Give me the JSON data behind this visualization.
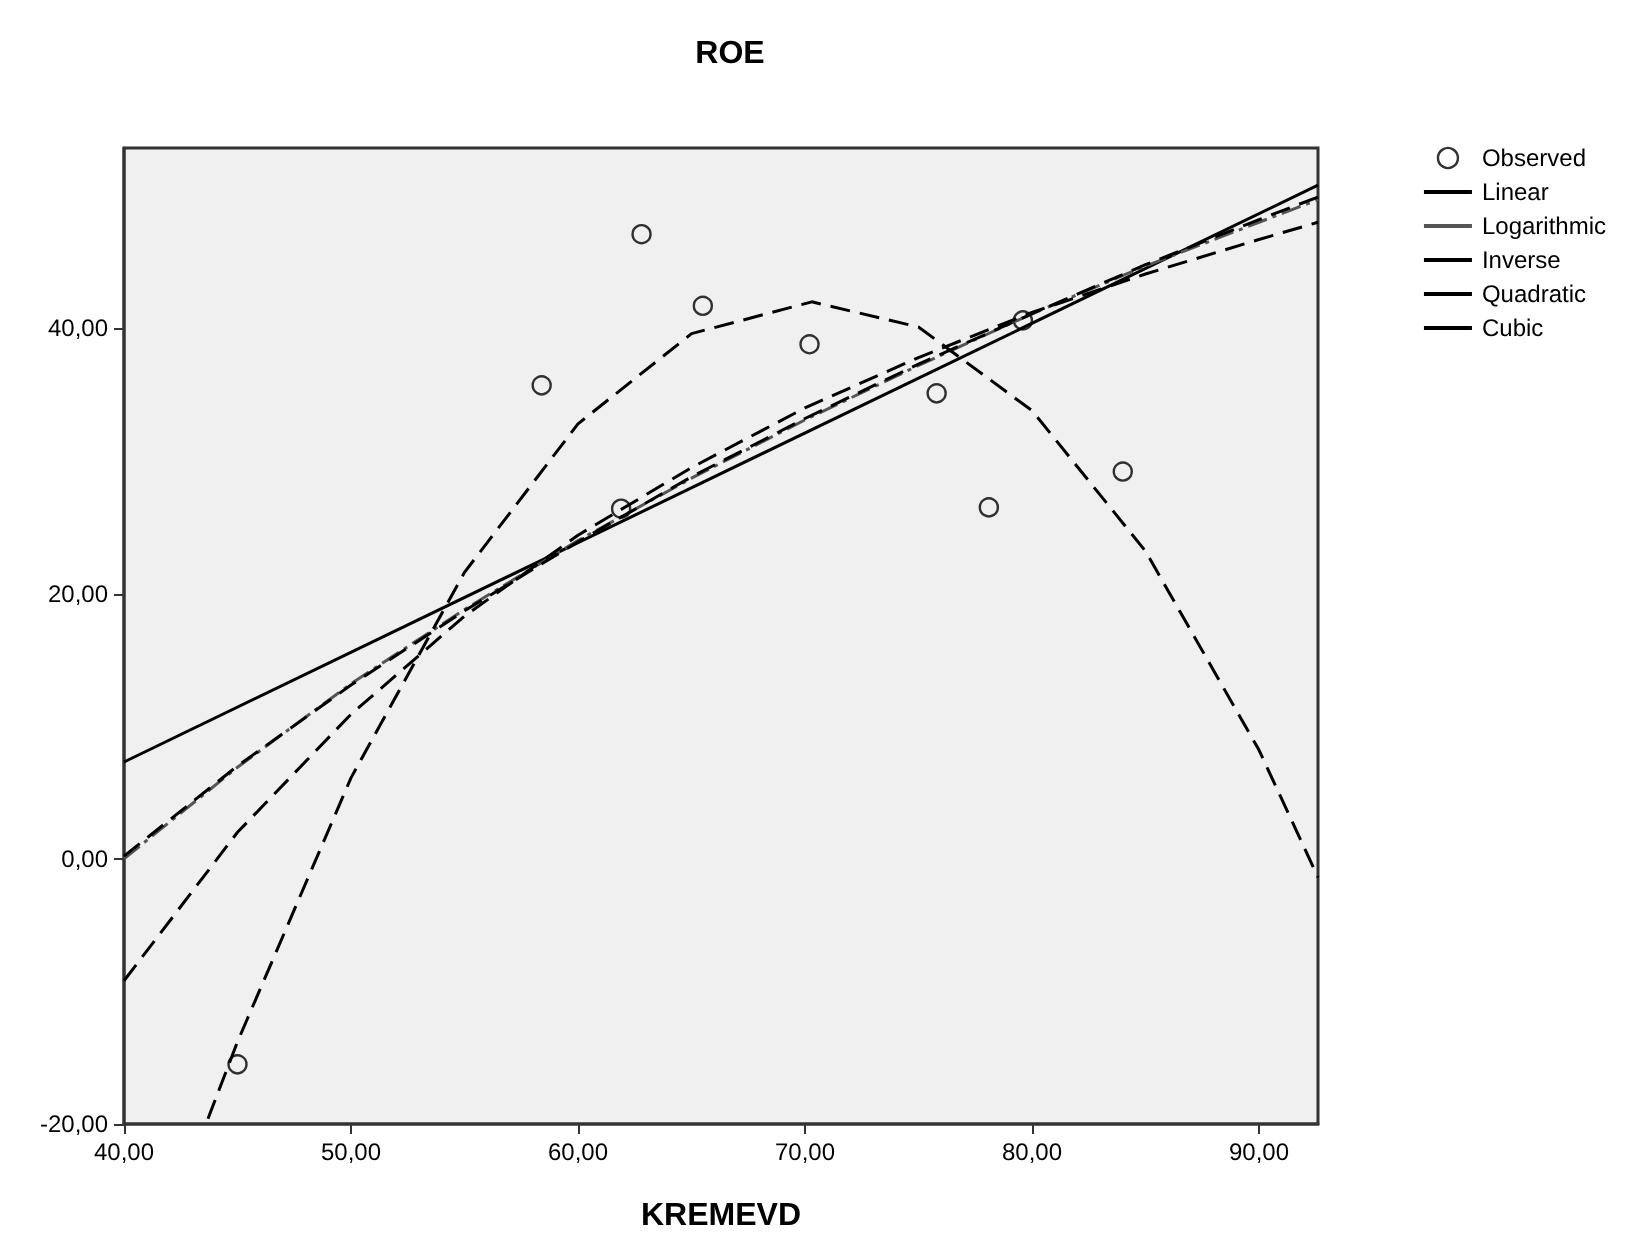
{
  "chart_data": {
    "type": "scatter",
    "title": "ROE",
    "xlabel": "KREMEVD",
    "xlim": [
      40,
      92.6
    ],
    "ylim": [
      -20,
      53.6
    ],
    "xticks": [
      {
        "value": 40,
        "label": "40,00"
      },
      {
        "value": 50,
        "label": "50,00"
      },
      {
        "value": 60,
        "label": "60,00"
      },
      {
        "value": 70,
        "label": "70,00"
      },
      {
        "value": 80,
        "label": "80,00"
      },
      {
        "value": 90,
        "label": "90,00"
      }
    ],
    "yticks": [
      {
        "value": -20,
        "label": "-20,00"
      },
      {
        "value": 0,
        "label": "0,00"
      },
      {
        "value": 20,
        "label": "20,00"
      },
      {
        "value": 40,
        "label": "40,00"
      }
    ],
    "grid": false,
    "legend": "top right",
    "series": [
      {
        "name": "Observed",
        "marker": "circle",
        "color": "#000000",
        "x": [
          45.0,
          58.4,
          61.9,
          62.8,
          65.5,
          70.2,
          75.8,
          78.1,
          79.6,
          84.0
        ],
        "values": [
          -15.5,
          35.7,
          26.4,
          47.1,
          41.7,
          38.8,
          35.1,
          26.5,
          40.6,
          29.2
        ]
      },
      {
        "name": "Linear",
        "type": "line",
        "line_style": "solid",
        "color": "#000000",
        "x": [
          40,
          92.6
        ],
        "values": [
          7.3,
          50.8
        ]
      },
      {
        "name": "Logarithmic",
        "type": "line",
        "line_style": "dotted",
        "color": "#555555",
        "x": [
          40,
          45,
          50,
          55,
          60,
          65,
          70,
          75,
          80,
          85,
          90,
          92.6
        ],
        "values": [
          0.0,
          6.9,
          13.2,
          18.8,
          24.0,
          28.7,
          33.1,
          37.2,
          41.1,
          44.7,
          48.0,
          49.7
        ]
      },
      {
        "name": "Inverse",
        "type": "line",
        "line_style": "dashed",
        "color": "#000000",
        "x": [
          40,
          45,
          50,
          55,
          60,
          65,
          70,
          75,
          80,
          85,
          90,
          92.6
        ],
        "values": [
          -9.2,
          2.0,
          10.9,
          18.3,
          24.4,
          29.5,
          34.0,
          37.8,
          41.2,
          44.1,
          46.7,
          48.0
        ]
      },
      {
        "name": "Quadratic",
        "type": "line",
        "line_style": "dashed",
        "color": "#000000",
        "x": [
          43.7,
          45,
          50,
          55,
          60,
          65,
          70.3,
          75,
          80,
          85,
          90,
          92.6
        ],
        "values": [
          -19.6,
          -13.8,
          6.1,
          21.6,
          32.8,
          39.6,
          42.0,
          40.1,
          33.8,
          23.2,
          8.2,
          -1.4
        ]
      },
      {
        "name": "Cubic",
        "type": "line",
        "line_style": "dashed",
        "color": "#000000",
        "x": [
          40,
          45,
          50,
          55,
          60,
          65,
          70,
          75,
          80,
          85,
          90,
          92.6
        ],
        "values": [
          0.2,
          7.0,
          13.1,
          18.7,
          23.9,
          28.8,
          33.2,
          37.3,
          41.1,
          44.8,
          48.2,
          49.9
        ]
      }
    ]
  }
}
